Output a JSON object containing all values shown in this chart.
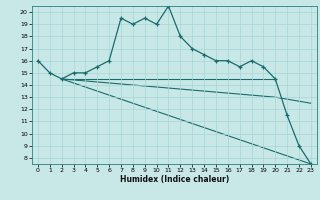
{
  "xlabel": "Humidex (Indice chaleur)",
  "bg_color": "#c8e8e8",
  "grid_color": "#a8d4d4",
  "line_color": "#1a6b6b",
  "xlim": [
    -0.5,
    23.5
  ],
  "ylim": [
    7.5,
    20.5
  ],
  "yticks": [
    8,
    9,
    10,
    11,
    12,
    13,
    14,
    15,
    16,
    17,
    18,
    19,
    20
  ],
  "xticks": [
    0,
    1,
    2,
    3,
    4,
    5,
    6,
    7,
    8,
    9,
    10,
    11,
    12,
    13,
    14,
    15,
    16,
    17,
    18,
    19,
    20,
    21,
    22,
    23
  ],
  "line_main": {
    "x": [
      0,
      1,
      2,
      3,
      4,
      5,
      6,
      7,
      8,
      9,
      10,
      11,
      12,
      13,
      14,
      15,
      16,
      17,
      18,
      19,
      20,
      21,
      22,
      23
    ],
    "y": [
      16,
      15,
      14.5,
      15,
      15,
      15.5,
      16,
      19.5,
      19,
      19.5,
      19,
      20.5,
      18,
      17,
      16.5,
      16,
      16,
      15.5,
      16,
      15.5,
      14.5,
      11.5,
      9,
      7.5
    ]
  },
  "line_flat": {
    "x": [
      2,
      20
    ],
    "y": [
      14.5,
      14.5
    ]
  },
  "line_mid": {
    "x": [
      2,
      20,
      23
    ],
    "y": [
      14.5,
      13.0,
      12.5
    ]
  },
  "line_steep": {
    "x": [
      2,
      23
    ],
    "y": [
      14.5,
      7.5
    ]
  }
}
